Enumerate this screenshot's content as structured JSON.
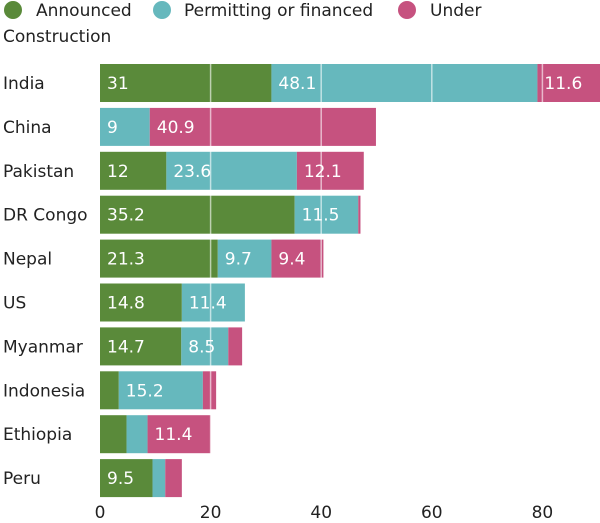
{
  "chart_data": {
    "type": "bar",
    "orientation": "horizontal",
    "stacked": true,
    "title": "",
    "xlabel": "",
    "ylabel": "",
    "xlim": [
      0,
      90
    ],
    "xticks": [
      0,
      20,
      40,
      60,
      80
    ],
    "grid": true,
    "legend_placement": "top-left",
    "categories": [
      "India",
      "China",
      "Pakistan",
      "DR Congo",
      "Nepal",
      "US",
      "Myanmar",
      "Indonesia",
      "Ethiopia",
      "Peru"
    ],
    "series": [
      {
        "name": "Announced",
        "color": "#5a8a3a",
        "values": [
          31,
          0,
          12,
          35.2,
          21.3,
          14.8,
          14.7,
          3.4,
          4.8,
          9.5
        ],
        "labels": [
          "31",
          "",
          "12",
          "35.2",
          "21.3",
          "14.8",
          "14.7",
          "",
          "",
          "9.5"
        ]
      },
      {
        "name": "Permitting or financed",
        "color": "#66b8bd",
        "values": [
          48.1,
          9,
          23.6,
          11.5,
          9.7,
          11.4,
          8.5,
          15.2,
          3.8,
          2.3
        ],
        "labels": [
          "48.1",
          "9",
          "23.6",
          "11.5",
          "9.7",
          "11.4",
          "8.5",
          "15.2",
          "",
          ""
        ]
      },
      {
        "name": "Under Construction",
        "color": "#c6527f",
        "values": [
          11.6,
          40.9,
          12.1,
          0.4,
          9.4,
          0,
          2.5,
          2.4,
          11.4,
          3.0
        ],
        "labels": [
          "11.6",
          "40.9",
          "12.1",
          "",
          "9.4",
          "",
          "",
          "",
          "11.4",
          ""
        ]
      }
    ]
  }
}
